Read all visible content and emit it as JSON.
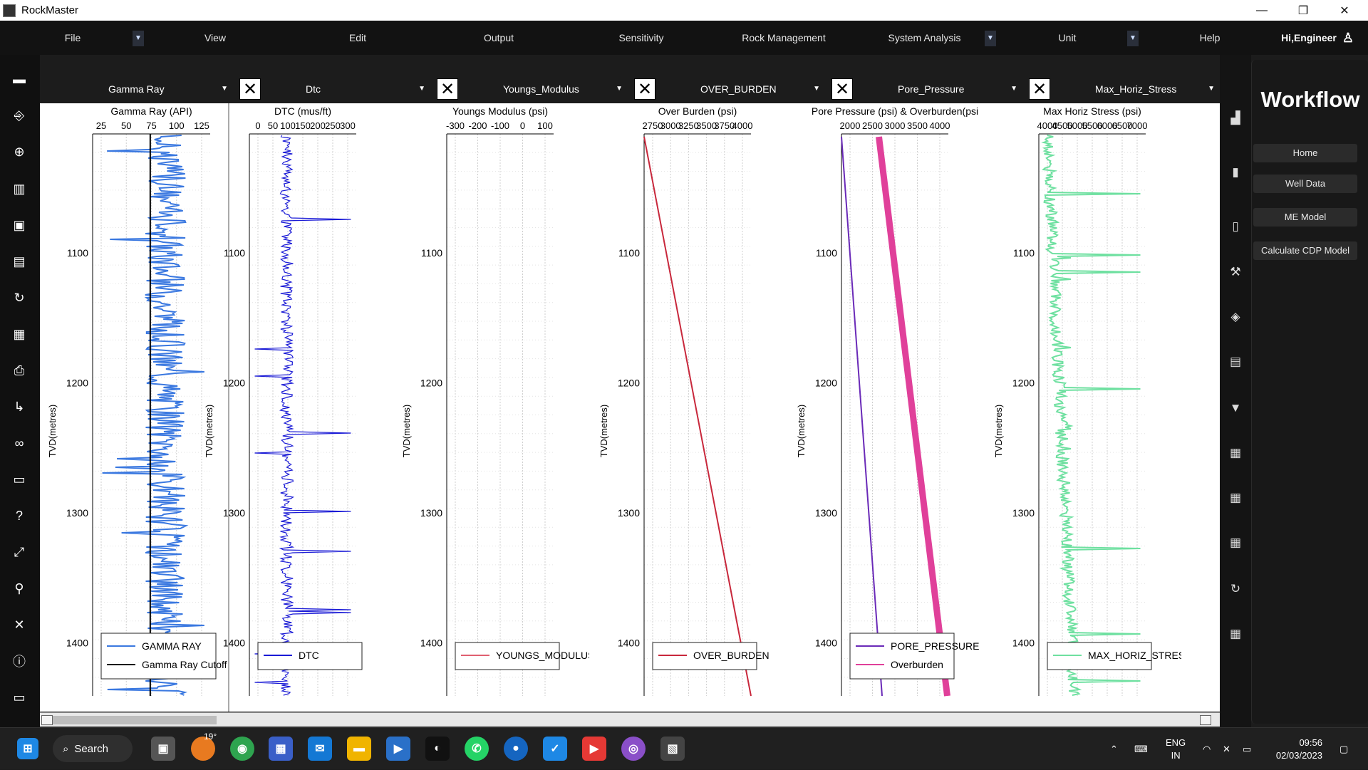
{
  "app": {
    "title": "RockMaster"
  },
  "window_controls": [
    "—",
    "❐",
    "✕"
  ],
  "menu": {
    "items": [
      "File",
      "View",
      "Edit",
      "Output",
      "Sensitivity",
      "Rock Management",
      "System Analysis",
      "Unit",
      "Help"
    ],
    "user_greeting": "Hi,Engineer"
  },
  "tracks": [
    {
      "selector": "Gamma Ray",
      "title": "Gamma Ray (API)",
      "ticks": [
        "25",
        "50",
        "75",
        "100",
        "125"
      ],
      "depth_ticks": [
        "1100",
        "1200",
        "1300",
        "1400"
      ],
      "ylabel": "TVD(metres)",
      "legend": [
        {
          "label": "GAMMA RAY",
          "color": "#3a78e0"
        },
        {
          "label": "Gamma Ray Cutoff",
          "color": "#000000"
        }
      ]
    },
    {
      "selector": "Dtc",
      "title": "DTC (mus/ft)",
      "ticks": [
        "0",
        "50",
        "100",
        "150",
        "200",
        "250",
        "300"
      ],
      "depth_ticks": [
        "1100",
        "1200",
        "1300",
        "1400"
      ],
      "ylabel": "TVD(metres)",
      "legend": [
        {
          "label": "DTC",
          "color": "#1a1ad6"
        }
      ]
    },
    {
      "selector": "Youngs_Modulus",
      "title": "Youngs Modulus (psi)",
      "ticks": [
        "-300",
        "-200",
        "-100",
        "0",
        "100"
      ],
      "depth_ticks": [
        "1100",
        "1200",
        "1300",
        "1400"
      ],
      "ylabel": "TVD(metres)",
      "legend": [
        {
          "label": "YOUNGS_MODULUS",
          "color": "#e06070"
        }
      ]
    },
    {
      "selector": "OVER_BURDEN",
      "title": "Over Burden (psi)",
      "ticks": [
        "2750",
        "3000",
        "3250",
        "3500",
        "3750",
        "4000"
      ],
      "depth_ticks": [
        "1100",
        "1200",
        "1300",
        "1400"
      ],
      "ylabel": "TVD(metres)",
      "legend": [
        {
          "label": "OVER_BURDEN",
          "color": "#c8283c"
        }
      ]
    },
    {
      "selector": "Pore_Pressure",
      "title": "Pore Pressure (psi) & Overburden(psi",
      "ticks": [
        "2000",
        "2500",
        "3000",
        "3500",
        "4000"
      ],
      "depth_ticks": [
        "1100",
        "1200",
        "1300",
        "1400"
      ],
      "ylabel": "TVD(metres)",
      "legend": [
        {
          "label": "PORE_PRESSURE",
          "color": "#6a2ab8"
        },
        {
          "label": "Overburden",
          "color": "#e0409a"
        }
      ]
    },
    {
      "selector": "Max_Horiz_Stress",
      "title": "Max Horiz Stress (psi)",
      "ticks": [
        "4000",
        "4500",
        "5000",
        "5500",
        "6000",
        "6500",
        "7000"
      ],
      "depth_ticks": [
        "1100",
        "1200",
        "1300",
        "1400"
      ],
      "ylabel": "TVD(metres)",
      "legend": [
        {
          "label": "MAX_HORIZ_STRESS",
          "color": "#6ee0a0"
        }
      ]
    }
  ],
  "chart_data": [
    {
      "type": "line",
      "title": "Gamma Ray (API)",
      "ylabel": "TVD(metres)",
      "xlim": [
        10,
        140
      ],
      "ylim": [
        1015,
        1445
      ],
      "series": [
        {
          "name": "GAMMA RAY",
          "note_values": "noisy log 40-130 API"
        },
        {
          "name": "Gamma Ray Cutoff",
          "x": [
            75,
            75
          ],
          "y": [
            1015,
            1445
          ]
        }
      ]
    },
    {
      "type": "line",
      "title": "DTC (mus/ft)",
      "ylabel": "TVD(metres)",
      "xlim": [
        0,
        300
      ],
      "ylim": [
        1015,
        1445
      ],
      "series": [
        {
          "name": "DTC"
        }
      ]
    },
    {
      "type": "line",
      "title": "Youngs Modulus (psi)",
      "ylabel": "TVD(metres)",
      "xlim": [
        -300,
        100
      ],
      "ylim": [
        1015,
        1445
      ],
      "series": [
        {
          "name": "YOUNGS_MODULUS",
          "x": [],
          "y": []
        }
      ]
    },
    {
      "type": "line",
      "title": "Over Burden (psi)",
      "ylabel": "TVD(metres)",
      "xlim": [
        2750,
        4000
      ],
      "ylim": [
        1015,
        1445
      ],
      "series": [
        {
          "name": "OVER_BURDEN",
          "x": [
            2750,
            4000
          ],
          "y": [
            1020,
            1445
          ]
        }
      ]
    },
    {
      "type": "line",
      "title": "Pore Pressure (psi) & Overburden(psi",
      "ylabel": "TVD(metres)",
      "xlim": [
        2000,
        4000
      ],
      "ylim": [
        1015,
        1445
      ],
      "series": [
        {
          "name": "PORE_PRESSURE",
          "x": [
            2000,
            2330
          ],
          "y": [
            1020,
            1445
          ]
        },
        {
          "name": "Overburden",
          "x": [
            2750,
            4050
          ],
          "y": [
            1020,
            1445
          ]
        }
      ]
    },
    {
      "type": "line",
      "title": "Max Horiz Stress (psi)",
      "ylabel": "TVD(metres)",
      "xlim": [
        4000,
        7000
      ],
      "ylim": [
        1015,
        1445
      ],
      "series": [
        {
          "name": "MAX_HORIZ_STRESS"
        }
      ]
    }
  ],
  "workflow": {
    "title": "Workflow",
    "buttons": [
      "Home",
      "Well Data",
      "ME Model",
      "Calculate CDP Model"
    ]
  },
  "taskbar": {
    "search_label": "Search",
    "weather": "19°",
    "lang": "ENG",
    "region": "IN",
    "time": "09:56",
    "date": "02/03/2023"
  },
  "icons": {
    "left": [
      "dataset-icon",
      "bookmark-icon",
      "zoom-icon",
      "panel-icon",
      "save-icon",
      "save-as-icon",
      "refresh-icon",
      "calendar-icon",
      "print-icon",
      "route-icon",
      "binoculars-icon",
      "folder-icon",
      "help-icon",
      "fullscreen-icon",
      "map-pin-icon",
      "collapse-icon",
      "info-icon",
      "folder-settings-icon"
    ],
    "right": [
      "chart-icon",
      "bar-chart-icon",
      "document-icon",
      "tool-icon",
      "layers-icon",
      "report-icon",
      "export-icon",
      "calendar-icon",
      "calendar-icon",
      "calendar-icon",
      "refresh-icon",
      "calendar-icon"
    ]
  }
}
